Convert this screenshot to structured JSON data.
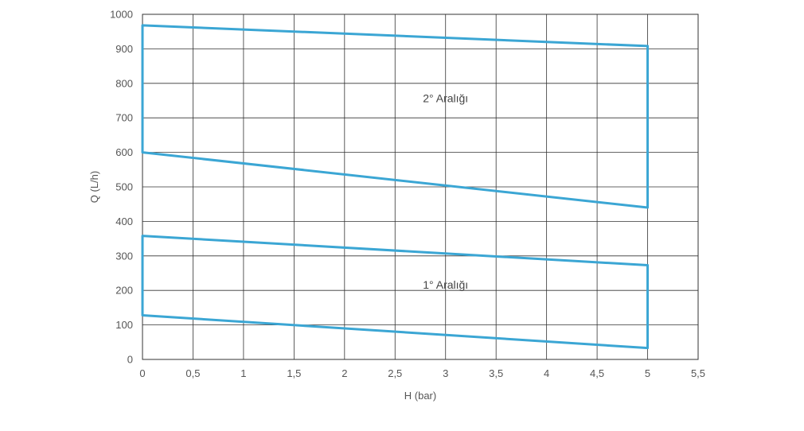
{
  "chart_data": {
    "type": "area",
    "xlabel": "H (bar)",
    "ylabel": "Q (L/h)",
    "xlim": [
      0,
      5.5
    ],
    "ylim": [
      0,
      1000
    ],
    "x_ticks": [
      "0",
      "0,5",
      "1",
      "1,5",
      "2",
      "2,5",
      "3",
      "3,5",
      "4",
      "4,5",
      "5",
      "5,5"
    ],
    "y_ticks": [
      "0",
      "100",
      "200",
      "300",
      "400",
      "500",
      "600",
      "700",
      "800",
      "900",
      "1000"
    ],
    "grid": true,
    "line_color": "#3ba6d4",
    "regions": [
      {
        "name": "1° Aralığı",
        "polygon": [
          [
            0,
            128
          ],
          [
            0,
            358
          ],
          [
            5,
            273
          ],
          [
            5,
            33
          ]
        ],
        "label_position": [
          3,
          205
        ]
      },
      {
        "name": "2° Aralığı",
        "polygon": [
          [
            0,
            600
          ],
          [
            0,
            968
          ],
          [
            5,
            908
          ],
          [
            5,
            440
          ]
        ],
        "label_position": [
          3,
          745
        ]
      }
    ]
  }
}
